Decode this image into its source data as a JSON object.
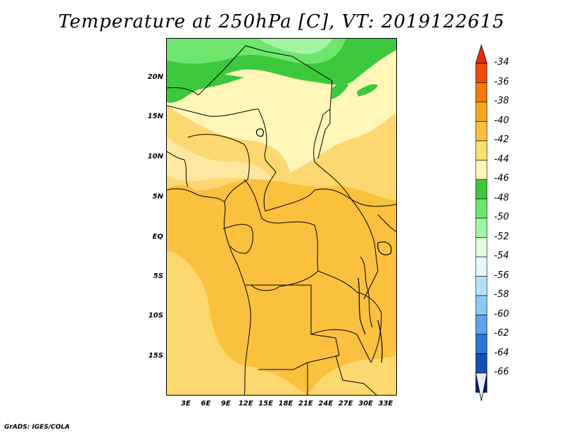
{
  "title": "Temperature at 250hPa [C], VT: 2019122615",
  "credit": "GrADS: IGES/COLA",
  "lat_labels": [
    "20N",
    "15N",
    "10N",
    "5N",
    "EQ",
    "5S",
    "10S",
    "15S"
  ],
  "lon_labels": [
    "3E",
    "6E",
    "9E",
    "12E",
    "15E",
    "18E",
    "21E",
    "24E",
    "27E",
    "30E",
    "33E"
  ],
  "colorbar": {
    "labels": [
      "-34",
      "-36",
      "-38",
      "-40",
      "-42",
      "-44",
      "-46",
      "-48",
      "-50",
      "-52",
      "-54",
      "-56",
      "-58",
      "-60",
      "-62",
      "-64",
      "-66"
    ],
    "colors": [
      "#f04a0a",
      "#f67a0a",
      "#f9a81e",
      "#fbc03e",
      "#fde070",
      "#fff6b8",
      "#3cc83c",
      "#6ee66e",
      "#a2f5a2",
      "#e1ffe1",
      "#e6f7ff",
      "#b4e1fa",
      "#8cc9f5",
      "#5aa5eb",
      "#2d78d7",
      "#1450b4",
      "#0a1e78"
    ],
    "top_arrow_color": "#e22b0d",
    "bottom_arrow_color": "#e8ecff"
  },
  "map_colors": {
    "lightest_yellow": "#fff6b8",
    "light_yellow": "#fee7a1",
    "yellow": "#fdd870",
    "orange": "#fbc03e",
    "green_dark": "#3cc83c",
    "green_mid": "#6ee66e",
    "green_light": "#a2f5a2"
  }
}
